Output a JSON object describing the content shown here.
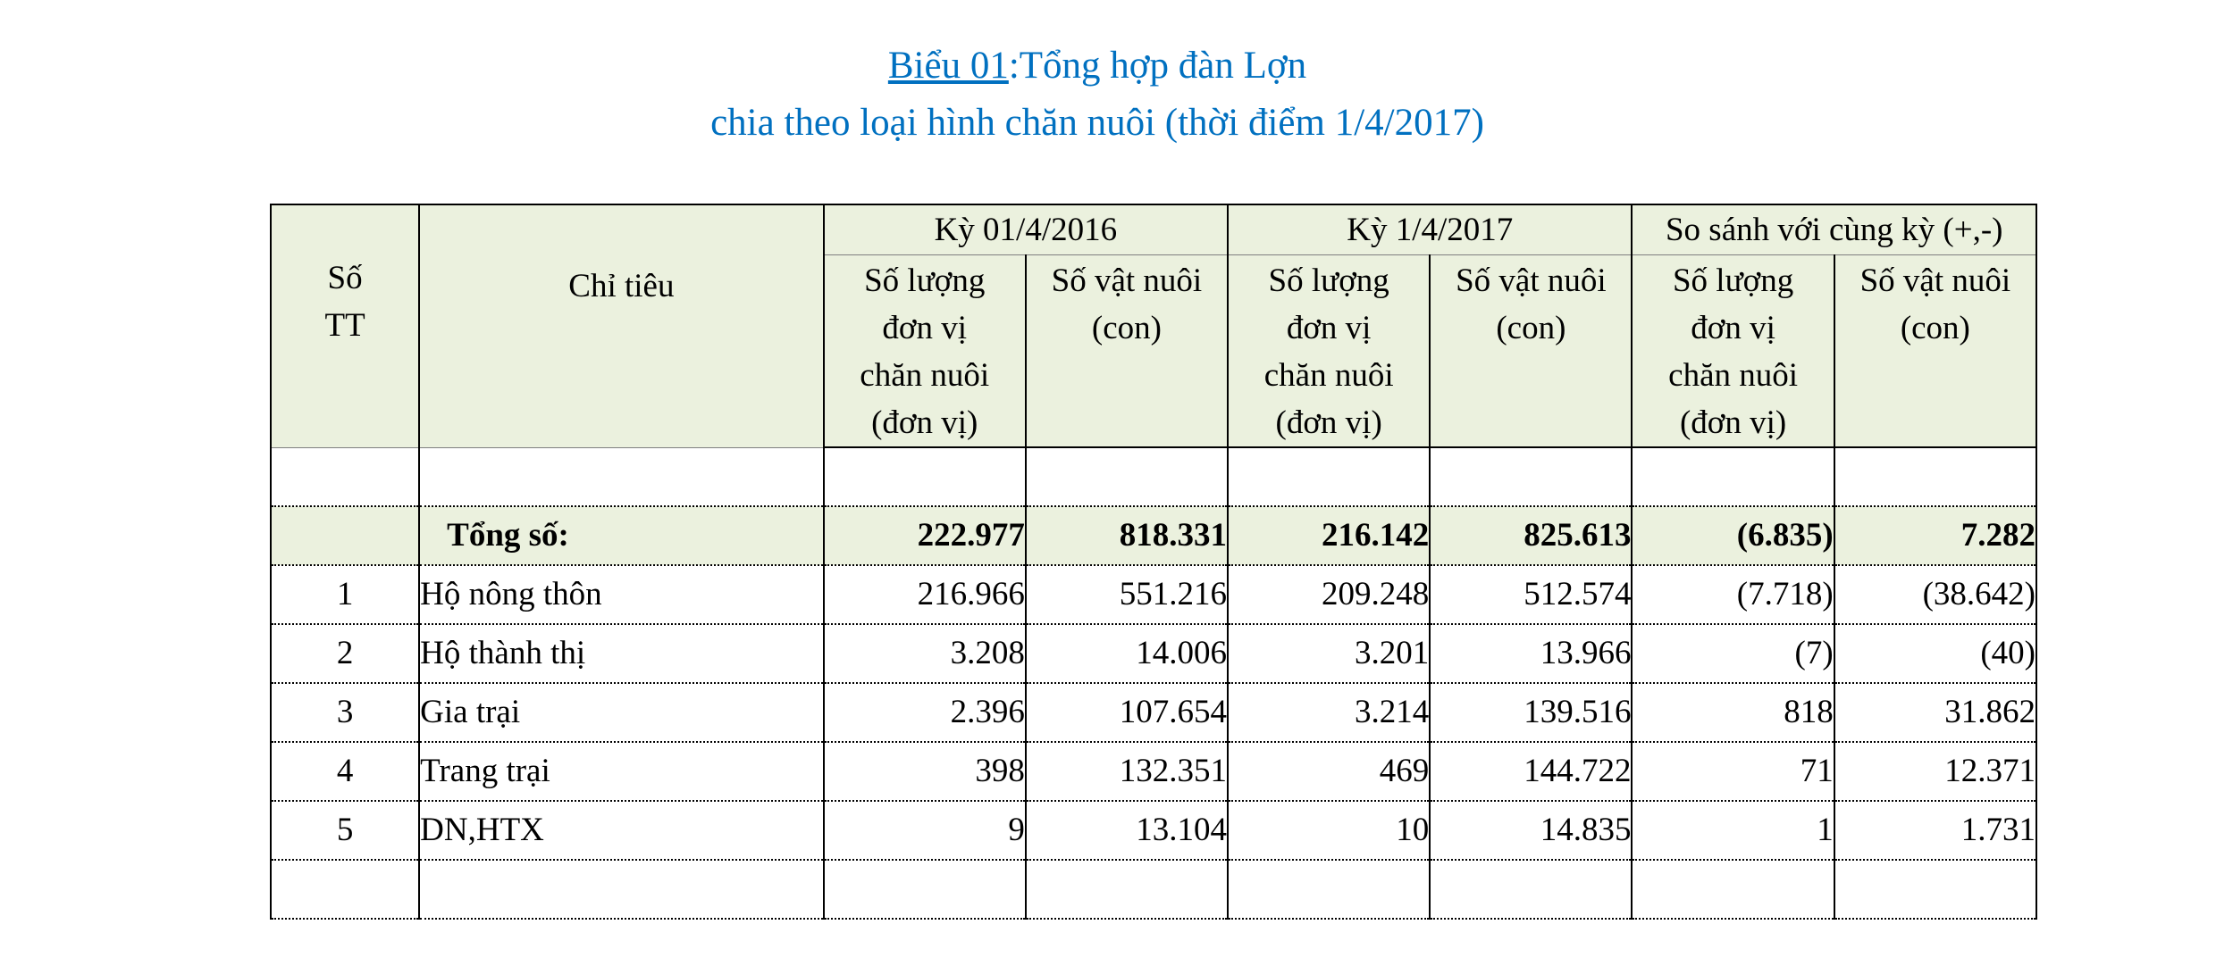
{
  "title": {
    "prefix": "Biểu 01",
    "line1_rest": ":Tổng hợp đàn Lợn",
    "line2": "chia theo loại hình chăn nuôi (thời điểm 1/4/2017)"
  },
  "header": {
    "stt": [
      "Số",
      "TT"
    ],
    "name": "Chỉ tiêu",
    "groups": [
      "Kỳ 01/4/2016",
      "Kỳ 1/4/2017",
      "So sánh với cùng kỳ (+,-)"
    ],
    "sub_units": [
      "Số lượng",
      "đơn vị",
      "chăn nuôi",
      "(đơn vị)"
    ],
    "sub_animals": [
      "Số vật nuôi",
      "(con)"
    ]
  },
  "total": {
    "label": "Tổng số:",
    "values": [
      "222.977",
      "818.331",
      "216.142",
      "825.613",
      "(6.835)",
      "7.282"
    ]
  },
  "rows": [
    {
      "stt": "1",
      "name": "Hộ nông thôn",
      "values": [
        "216.966",
        "551.216",
        "209.248",
        "512.574",
        "(7.718)",
        "(38.642)"
      ]
    },
    {
      "stt": "2",
      "name": "Hộ thành thị",
      "values": [
        "3.208",
        "14.006",
        "3.201",
        "13.966",
        "(7)",
        "(40)"
      ]
    },
    {
      "stt": "3",
      "name": "Gia trại",
      "values": [
        "2.396",
        "107.654",
        "3.214",
        "139.516",
        "818",
        "31.862"
      ]
    },
    {
      "stt": "4",
      "name": "Trang trại",
      "values": [
        "398",
        "132.351",
        "469",
        "144.722",
        "71",
        "12.371"
      ]
    },
    {
      "stt": "5",
      "name": "DN,HTX",
      "values": [
        "9",
        "13.104",
        "10",
        "14.835",
        "1",
        "1.731"
      ]
    }
  ],
  "colors": {
    "title": "#0070c0",
    "header_bg": "#ebf1de",
    "total_bg": "#ebf1de"
  }
}
